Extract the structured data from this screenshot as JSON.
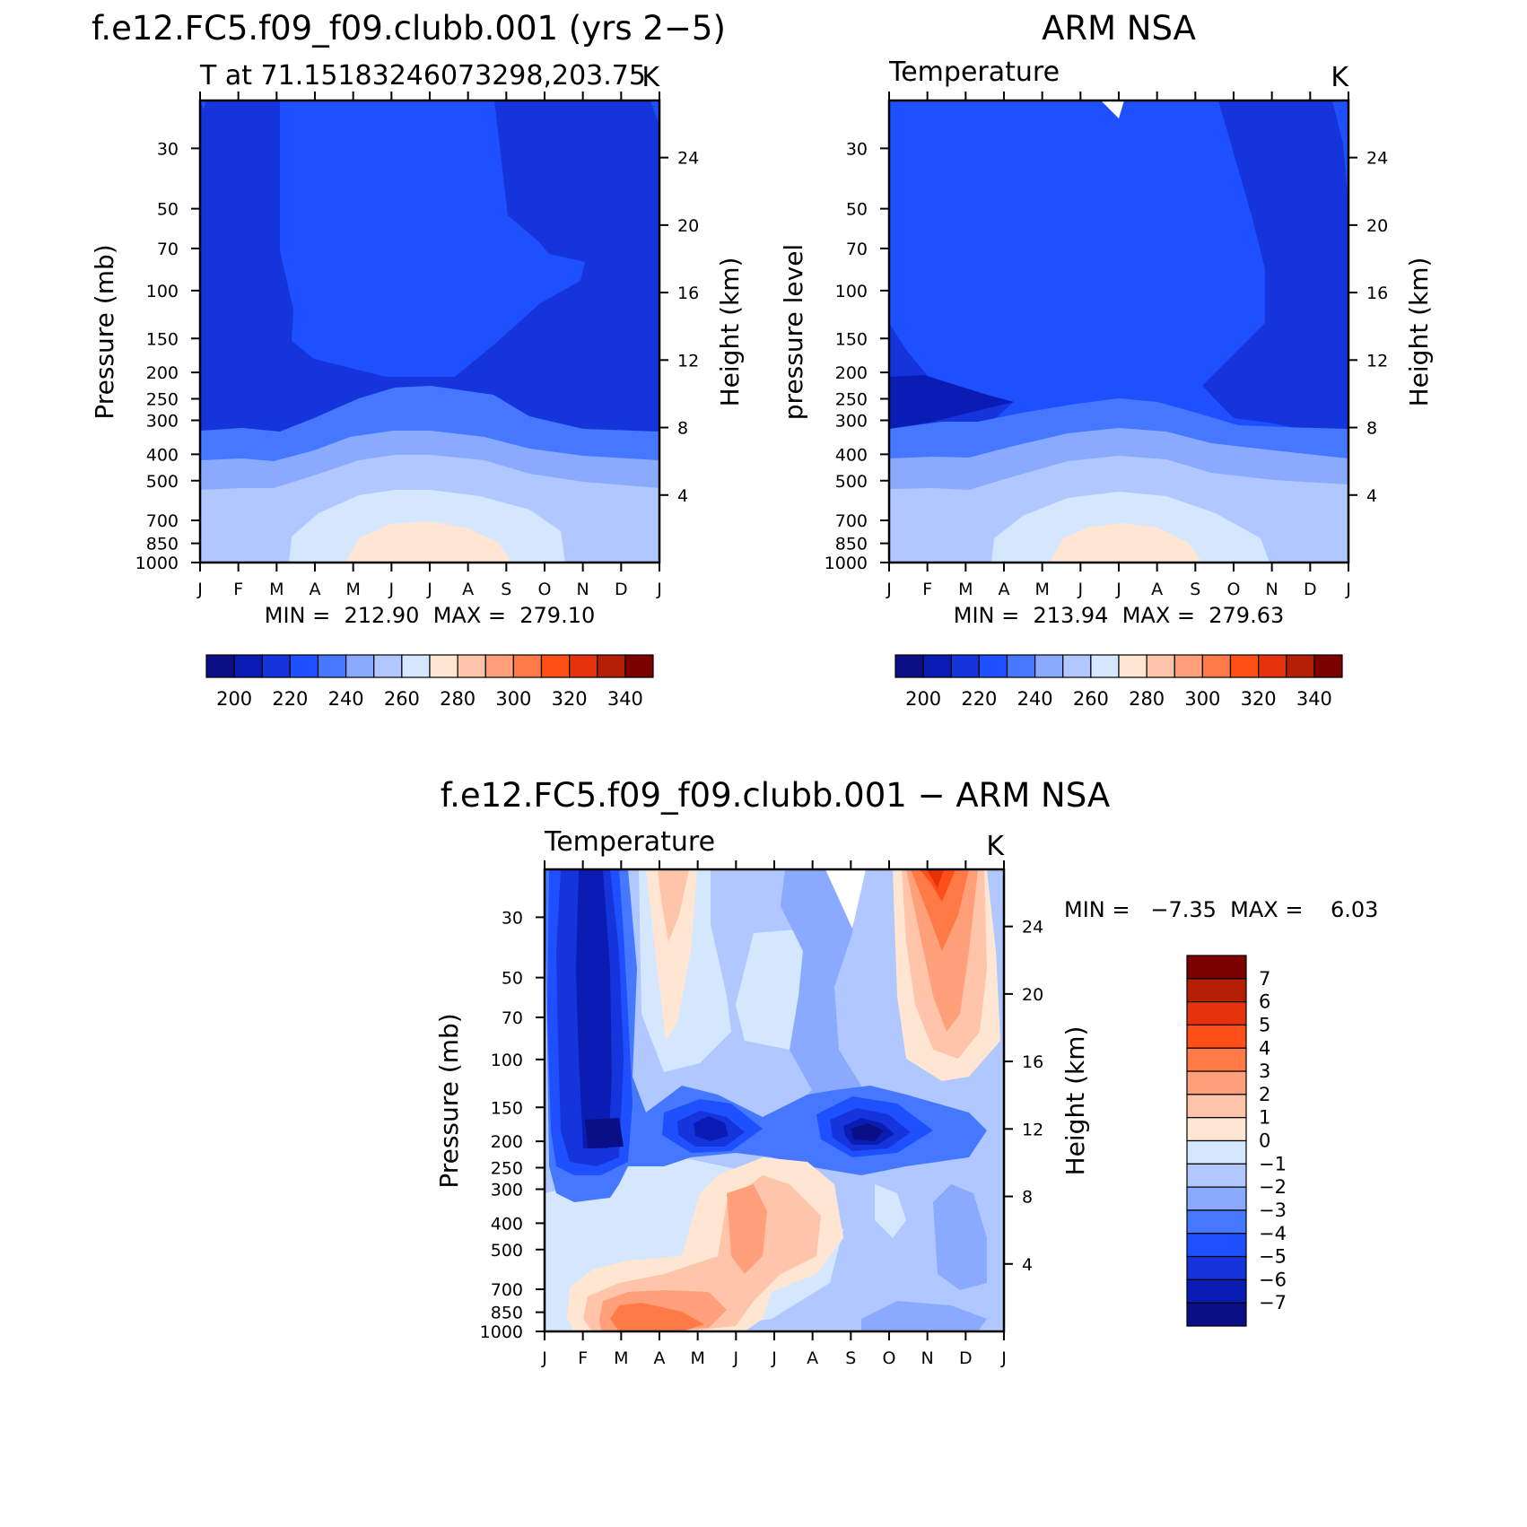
{
  "chart_data": [
    {
      "type": "heatmap",
      "panel": "model",
      "title": "f.e12.FC5.f09_f09.clubb.001 (yrs 2−5)",
      "subtitle_left": "T at 71.15183246073298,203.75",
      "subtitle_right": "K",
      "ylabel_left": "Pressure (mb)",
      "ylabel_right": "Height (km)",
      "x_tick_labels": [
        "J",
        "F",
        "M",
        "A",
        "M",
        "J",
        "J",
        "A",
        "S",
        "O",
        "N",
        "D",
        "J"
      ],
      "pressure_ticks": [
        30,
        50,
        70,
        100,
        150,
        200,
        250,
        300,
        400,
        500,
        700,
        850,
        1000
      ],
      "height_ticks": [
        24,
        20,
        16,
        12,
        8,
        4
      ],
      "min_max_text": "MIN =  212.90  MAX =  279.10",
      "min": 212.9,
      "max": 279.1,
      "colorbar_labels": [
        "200",
        "220",
        "240",
        "260",
        "280",
        "300",
        "320",
        "340"
      ],
      "zlim": [
        190,
        350
      ],
      "grid": false
    },
    {
      "type": "heatmap",
      "panel": "observation",
      "title": "ARM NSA",
      "subtitle_left": "Temperature",
      "subtitle_right": "K",
      "ylabel_left": "pressure level",
      "ylabel_right": "Height (km)",
      "x_tick_labels": [
        "J",
        "F",
        "M",
        "A",
        "M",
        "J",
        "J",
        "A",
        "S",
        "O",
        "N",
        "D",
        "J"
      ],
      "pressure_ticks": [
        30,
        50,
        70,
        100,
        150,
        200,
        250,
        300,
        400,
        500,
        700,
        850,
        1000
      ],
      "height_ticks": [
        24,
        20,
        16,
        12,
        8,
        4
      ],
      "min_max_text": "MIN =  213.94  MAX =  279.63",
      "min": 213.94,
      "max": 279.63,
      "colorbar_labels": [
        "200",
        "220",
        "240",
        "260",
        "280",
        "300",
        "320",
        "340"
      ],
      "zlim": [
        190,
        350
      ],
      "grid": false
    },
    {
      "type": "heatmap",
      "panel": "difference",
      "title": "f.e12.FC5.f09_f09.clubb.001 − ARM NSA",
      "subtitle_left": "Temperature",
      "subtitle_right": "K",
      "ylabel_left": "Pressure (mb)",
      "ylabel_right": "Height (km)",
      "x_tick_labels": [
        "J",
        "F",
        "M",
        "A",
        "M",
        "J",
        "J",
        "A",
        "S",
        "O",
        "N",
        "D",
        "J"
      ],
      "pressure_ticks": [
        30,
        50,
        70,
        100,
        150,
        200,
        250,
        300,
        400,
        500,
        700,
        850,
        1000
      ],
      "height_ticks": [
        24,
        20,
        16,
        12,
        8,
        4
      ],
      "min_max_text": "MIN =   −7.35  MAX =    6.03",
      "min": -7.35,
      "max": 6.03,
      "colorbar_labels": [
        "7",
        "6",
        "5",
        "4",
        "3",
        "2",
        "1",
        "0",
        "−1",
        "−2",
        "−3",
        "−4",
        "−5",
        "−6",
        "−7"
      ],
      "zlim": [
        -8,
        8
      ],
      "grid": false
    }
  ],
  "colors": {
    "temperature_scale": [
      "#0a0f85",
      "#0a1cb4",
      "#1634db",
      "#1e50ff",
      "#4678ff",
      "#8aaaff",
      "#b0c8ff",
      "#d5e6ff",
      "#ffe6d2",
      "#ffc4aa",
      "#ffa07a",
      "#ff7a46",
      "#ff4f19",
      "#e6320a",
      "#b41e05",
      "#7d0000"
    ],
    "difference_scale": [
      "#7d0000",
      "#b41e05",
      "#e6320a",
      "#ff4f19",
      "#ff7a46",
      "#ffa07a",
      "#ffc4aa",
      "#ffe6d2",
      "#d5e6ff",
      "#b0c8ff",
      "#8aaaff",
      "#4678ff",
      "#1e50ff",
      "#1634db",
      "#0a1cb4",
      "#0a0f85"
    ]
  }
}
